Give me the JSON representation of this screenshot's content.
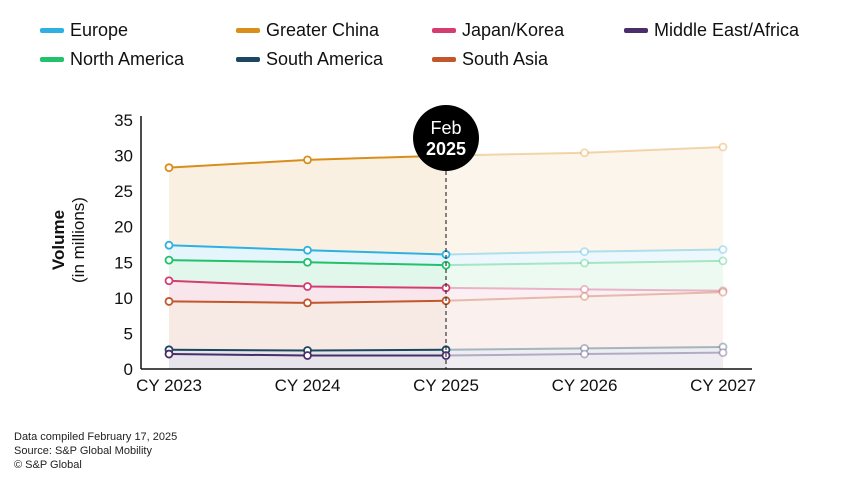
{
  "legend": {
    "items": [
      {
        "label": "Europe",
        "color": "#2eb1e0"
      },
      {
        "label": "Greater China",
        "color": "#d98e1c"
      },
      {
        "label": "Japan/Korea",
        "color": "#d43d72"
      },
      {
        "label": "Middle East/Africa",
        "color": "#4b2d6b"
      },
      {
        "label": "North America",
        "color": "#22c16b"
      },
      {
        "label": "South America",
        "color": "#1d4660"
      },
      {
        "label": "South Asia",
        "color": "#c1572a"
      }
    ]
  },
  "marker": {
    "line1": "Feb",
    "line2": "2025"
  },
  "footer": {
    "line1": "Data compiled February 17, 2025",
    "line2": "Source: S&P Global Mobility",
    "line3": "© S&P Global"
  },
  "chart_data": {
    "type": "line",
    "categories": [
      "CY 2023",
      "CY 2024",
      "CY 2025",
      "CY 2026",
      "CY 2027"
    ],
    "ylabel": "Volume",
    "ylabel_sub": "(in millions)",
    "ylim": [
      0,
      35
    ],
    "yticks": [
      0,
      5,
      10,
      15,
      20,
      25,
      30,
      35
    ],
    "forecast_start_category": "CY 2025",
    "series": [
      {
        "name": "Greater China",
        "values": [
          28.3,
          29.4,
          30.0,
          30.4,
          31.2
        ]
      },
      {
        "name": "Europe",
        "values": [
          17.4,
          16.7,
          16.1,
          16.5,
          16.8
        ]
      },
      {
        "name": "North America",
        "values": [
          15.3,
          15.0,
          14.6,
          14.9,
          15.2
        ]
      },
      {
        "name": "Japan/Korea",
        "values": [
          12.4,
          11.6,
          11.4,
          11.2,
          11.0
        ]
      },
      {
        "name": "South Asia",
        "values": [
          9.5,
          9.3,
          9.6,
          10.2,
          10.8
        ]
      },
      {
        "name": "South America",
        "values": [
          2.7,
          2.6,
          2.7,
          2.9,
          3.1
        ]
      },
      {
        "name": "Middle East/Africa",
        "values": [
          2.1,
          1.9,
          1.9,
          2.1,
          2.3
        ]
      }
    ]
  }
}
